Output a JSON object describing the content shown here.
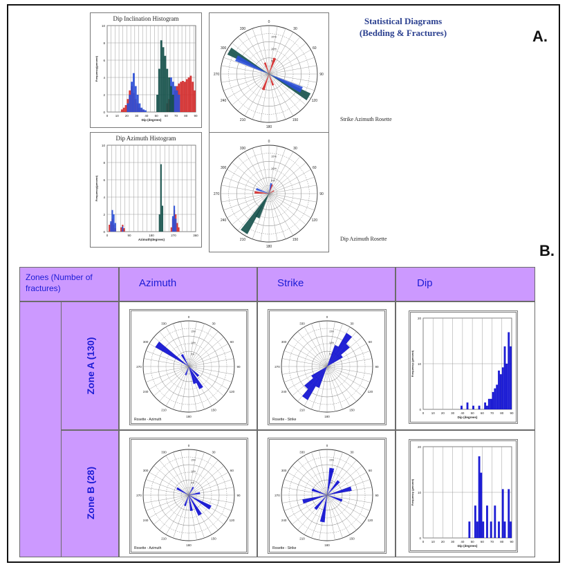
{
  "section_a": {
    "label": "A.",
    "title_line1": "Statistical Diagrams",
    "title_line2": "(Bedding & Fractures)",
    "strike_caption": "Strike Azimuth Rosette",
    "dip_az_caption": "Dip Azimuth Rosette"
  },
  "section_b": {
    "label": "B.",
    "headers": {
      "zones": "Zones (Number of fractures)",
      "zones_line1": "Zones (Number of",
      "zones_line2": "fractures)",
      "azimuth": "Azimuth",
      "strike": "Strike",
      "dip": "Dip"
    },
    "zones": [
      {
        "label": "Zone A (130)"
      },
      {
        "label": "Zone B (28)"
      }
    ]
  },
  "colors": {
    "blue": "#2b4fd8",
    "red": "#d42a2a",
    "dark": "#14504a",
    "header": "#cc99ff",
    "bar_blue": "#0a0ad0",
    "text_blue": "#1c1cd6"
  },
  "chart_data": [
    {
      "id": "dip_inclination_histogram",
      "type": "bar",
      "title": "Dip Inclination Histogram",
      "xlabel": "Dip (degrees)",
      "ylabel": "Frequency(percent)",
      "xlim": [
        0,
        90
      ],
      "ylim": [
        0,
        10
      ],
      "xticks": [
        0,
        10,
        20,
        30,
        40,
        50,
        60,
        70,
        80,
        90
      ],
      "yticks": [
        0,
        2,
        4,
        6,
        8,
        10
      ],
      "bin_width": 2,
      "series": [
        {
          "color": "red",
          "x": [
            14,
            16,
            18,
            20,
            22,
            24,
            26,
            28,
            30,
            32,
            34,
            36,
            60,
            62,
            64,
            66,
            68,
            70,
            72,
            74,
            76,
            78,
            80,
            82,
            84,
            86,
            88
          ],
          "values": [
            0.3,
            0.5,
            0.8,
            1.5,
            2.5,
            3.0,
            2.2,
            1.5,
            1.0,
            0.5,
            0.3,
            0.2,
            1.0,
            1.5,
            1.8,
            2.0,
            2.5,
            3.0,
            3.3,
            3.5,
            3.6,
            3.5,
            3.8,
            4.0,
            4.2,
            3.5,
            2.5
          ]
        },
        {
          "color": "blue",
          "x": [
            20,
            22,
            24,
            26,
            28,
            30,
            32,
            34,
            36,
            38,
            64,
            66,
            68,
            70,
            72
          ],
          "values": [
            1.0,
            2.0,
            3.5,
            4.5,
            3.0,
            2.0,
            1.0,
            0.5,
            0.3,
            0.2,
            4.0,
            3.5,
            3.0,
            2.5,
            2.0
          ]
        },
        {
          "color": "dark",
          "x": [
            50,
            52,
            54,
            56,
            58,
            60,
            62,
            64,
            66
          ],
          "values": [
            2.0,
            5.0,
            8.3,
            7.5,
            6.5,
            5.0,
            4.0,
            3.0,
            2.0
          ]
        }
      ]
    },
    {
      "id": "strike_azimuth_rosette",
      "type": "rose",
      "caption": "Strike Azimuth Rosette",
      "angle_labels": [
        "0",
        "30",
        "60",
        "90",
        "120",
        "150",
        "180",
        "210",
        "240",
        "270",
        "300",
        "330"
      ],
      "radial_labels": [
        "5%",
        "10%",
        "15%"
      ],
      "petals": [
        {
          "color": "dark",
          "angle": 300,
          "length": 0.95
        },
        {
          "color": "dark",
          "angle": 120,
          "length": 0.95
        },
        {
          "color": "blue",
          "angle": 296,
          "length": 0.75
        },
        {
          "color": "blue",
          "angle": 116,
          "length": 0.75
        },
        {
          "color": "red",
          "angle": 20,
          "length": 0.35
        },
        {
          "color": "red",
          "angle": 200,
          "length": 0.35
        },
        {
          "color": "red",
          "angle": 340,
          "length": 0.25
        },
        {
          "color": "red",
          "angle": 160,
          "length": 0.25
        }
      ]
    },
    {
      "id": "dip_azimuth_histogram",
      "type": "bar",
      "title": "Dip Azimuth Histogram",
      "xlabel": "Azimuth(degrees)",
      "ylabel": "Frequency(percent)",
      "xlim": [
        0,
        360
      ],
      "ylim": [
        0,
        10
      ],
      "xticks": [
        0,
        90,
        180,
        270,
        360
      ],
      "yticks": [
        0,
        2,
        4,
        6,
        8,
        10
      ],
      "bin_width": 6,
      "series": [
        {
          "color": "red",
          "x": [
            6,
            12,
            18,
            24,
            30,
            54,
            60,
            66,
            258,
            264,
            270,
            276,
            282,
            288
          ],
          "values": [
            0.8,
            1.0,
            1.5,
            0.8,
            0.4,
            0.5,
            0.8,
            0.4,
            0.5,
            1.5,
            2.5,
            2.0,
            1.0,
            0.5
          ]
        },
        {
          "color": "blue",
          "x": [
            12,
            18,
            24,
            30,
            60,
            264,
            270,
            276
          ],
          "values": [
            1.2,
            2.5,
            2.0,
            1.0,
            0.6,
            1.8,
            3.0,
            1.5
          ]
        },
        {
          "color": "dark",
          "x": [
            210,
            216,
            222
          ],
          "values": [
            2.0,
            7.8,
            3.0
          ]
        }
      ]
    },
    {
      "id": "dip_azimuth_rosette",
      "type": "rose",
      "caption": "Dip Azimuth Rosette",
      "angle_labels": [
        "0",
        "30",
        "60",
        "90",
        "120",
        "150",
        "180",
        "210",
        "240",
        "270",
        "300",
        "330"
      ],
      "radial_labels": [
        "5%",
        "10%",
        "15%"
      ],
      "petals": [
        {
          "color": "dark",
          "angle": 213,
          "length": 0.95
        },
        {
          "color": "dark",
          "angle": 206,
          "length": 0.55
        },
        {
          "color": "red",
          "angle": 275,
          "length": 0.3
        },
        {
          "color": "red",
          "angle": 20,
          "length": 0.2
        },
        {
          "color": "blue",
          "angle": 290,
          "length": 0.28
        },
        {
          "color": "blue",
          "angle": 12,
          "length": 0.22
        },
        {
          "color": "red",
          "angle": 60,
          "length": 0.12
        }
      ]
    },
    {
      "id": "zone_a_azimuth_rosette",
      "type": "rose",
      "caption": "Rosette - Azimuth",
      "angle_labels": [
        "0",
        "30",
        "60",
        "90",
        "120",
        "150",
        "180",
        "210",
        "240",
        "270",
        "300",
        "330"
      ],
      "radial_labels": [
        "5%",
        "10%",
        "15%"
      ],
      "petals": [
        {
          "color": "bar_blue",
          "angle": 305,
          "length": 0.85
        },
        {
          "color": "bar_blue",
          "angle": 150,
          "length": 0.55
        },
        {
          "color": "bar_blue",
          "angle": 160,
          "length": 0.4
        },
        {
          "color": "bar_blue",
          "angle": 330,
          "length": 0.3
        },
        {
          "color": "bar_blue",
          "angle": 135,
          "length": 0.3
        },
        {
          "color": "bar_blue",
          "angle": 200,
          "length": 0.2
        }
      ]
    },
    {
      "id": "zone_a_strike_rosette",
      "type": "rose",
      "caption": "Rosette - Strike",
      "angle_labels": [
        "0",
        "30",
        "60",
        "90",
        "120",
        "150",
        "180",
        "210",
        "240",
        "270",
        "300",
        "330"
      ],
      "radial_labels": [
        "5%",
        "10%",
        "15%"
      ],
      "petals": [
        {
          "color": "bar_blue",
          "angle": 35,
          "length": 0.85
        },
        {
          "color": "bar_blue",
          "angle": 215,
          "length": 0.85
        },
        {
          "color": "bar_blue",
          "angle": 45,
          "length": 0.65
        },
        {
          "color": "bar_blue",
          "angle": 225,
          "length": 0.65
        },
        {
          "color": "bar_blue",
          "angle": 25,
          "length": 0.5
        },
        {
          "color": "bar_blue",
          "angle": 205,
          "length": 0.5
        },
        {
          "color": "bar_blue",
          "angle": 55,
          "length": 0.4
        },
        {
          "color": "bar_blue",
          "angle": 235,
          "length": 0.4
        }
      ]
    },
    {
      "id": "zone_a_dip_histogram",
      "type": "bar",
      "xlabel": "Dip (degrees)",
      "ylabel": "Frequency (percent)",
      "xlim": [
        0,
        90
      ],
      "ylim": [
        0,
        20
      ],
      "xticks": [
        0,
        10,
        20,
        30,
        40,
        50,
        60,
        70,
        80,
        90
      ],
      "yticks": [
        0,
        10,
        20
      ],
      "bin_width": 2,
      "series": [
        {
          "color": "bar_blue",
          "x": [
            38,
            44,
            50,
            56,
            62,
            64,
            66,
            68,
            70,
            72,
            74,
            76,
            78,
            80,
            82,
            84,
            86,
            88
          ],
          "values": [
            0.8,
            1.5,
            0.8,
            0.8,
            1.5,
            0.8,
            2.3,
            2.3,
            3.8,
            4.6,
            5.4,
            8.5,
            7.7,
            9.2,
            13.8,
            10.0,
            16.9,
            13.8
          ]
        }
      ]
    },
    {
      "id": "zone_b_azimuth_rosette",
      "type": "rose",
      "caption": "Rosette - Azimuth",
      "angle_labels": [
        "0",
        "30",
        "60",
        "90",
        "120",
        "150",
        "180",
        "210",
        "240",
        "270",
        "300",
        "330"
      ],
      "radial_labels": [
        "5%",
        "10%",
        "15%"
      ],
      "petals": [
        {
          "color": "bar_blue",
          "angle": 120,
          "length": 0.55
        },
        {
          "color": "bar_blue",
          "angle": 150,
          "length": 0.5
        },
        {
          "color": "bar_blue",
          "angle": 170,
          "length": 0.35
        },
        {
          "color": "bar_blue",
          "angle": 300,
          "length": 0.3
        },
        {
          "color": "bar_blue",
          "angle": 200,
          "length": 0.25
        },
        {
          "color": "bar_blue",
          "angle": 30,
          "length": 0.2
        },
        {
          "color": "bar_blue",
          "angle": 80,
          "length": 0.25
        }
      ]
    },
    {
      "id": "zone_b_strike_rosette",
      "type": "rose",
      "caption": "Rosette - Strike",
      "angle_labels": [
        "0",
        "30",
        "60",
        "90",
        "120",
        "150",
        "180",
        "210",
        "240",
        "270",
        "300",
        "330"
      ],
      "radial_labels": [
        "5%",
        "10%",
        "15%"
      ],
      "petals": [
        {
          "color": "bar_blue",
          "angle": 10,
          "length": 0.6
        },
        {
          "color": "bar_blue",
          "angle": 190,
          "length": 0.6
        },
        {
          "color": "bar_blue",
          "angle": 75,
          "length": 0.55
        },
        {
          "color": "bar_blue",
          "angle": 255,
          "length": 0.55
        },
        {
          "color": "bar_blue",
          "angle": 40,
          "length": 0.4
        },
        {
          "color": "bar_blue",
          "angle": 220,
          "length": 0.4
        },
        {
          "color": "bar_blue",
          "angle": 110,
          "length": 0.35
        },
        {
          "color": "bar_blue",
          "angle": 290,
          "length": 0.35
        }
      ]
    },
    {
      "id": "zone_b_dip_histogram",
      "type": "bar",
      "xlabel": "Dip (degrees)",
      "ylabel": "Frequency (percent)",
      "xlim": [
        0,
        90
      ],
      "ylim": [
        0,
        20
      ],
      "xticks": [
        0,
        10,
        20,
        30,
        40,
        50,
        60,
        70,
        80,
        90
      ],
      "yticks": [
        0,
        10,
        20
      ],
      "bin_width": 2,
      "series": [
        {
          "color": "bar_blue",
          "x": [
            46,
            52,
            54,
            56,
            58,
            60,
            64,
            68,
            72,
            76,
            80,
            82,
            86,
            88
          ],
          "values": [
            3.6,
            7.1,
            3.6,
            17.9,
            14.3,
            3.6,
            7.1,
            3.6,
            7.1,
            3.6,
            10.7,
            3.6,
            10.7,
            3.6
          ]
        }
      ]
    }
  ]
}
